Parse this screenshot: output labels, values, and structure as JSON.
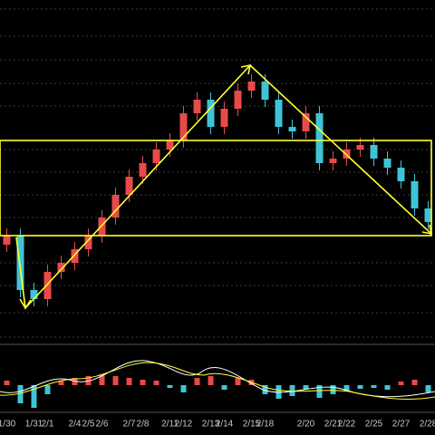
{
  "chart_data": {
    "type": "candlestick",
    "categories": [
      "1/30",
      null,
      "1/31",
      "2/1",
      null,
      "2/4",
      "2/5",
      "2/6",
      null,
      "2/7",
      "2/8",
      null,
      "2/11",
      "2/12",
      null,
      "2/13",
      "2/14",
      null,
      "2/15",
      "2/18",
      null,
      null,
      "2/20",
      null,
      "2/21",
      "2/22",
      null,
      "2/25",
      null,
      "2/27",
      null,
      "2/28"
    ],
    "open": [
      100,
      110,
      50,
      40,
      70,
      80,
      95,
      110,
      130,
      155,
      175,
      190,
      205,
      215,
      245,
      260,
      230,
      250,
      270,
      280,
      260,
      230,
      225,
      245,
      190,
      195,
      205,
      210,
      195,
      185,
      170,
      140
    ],
    "high": [
      118,
      118,
      58,
      78,
      88,
      103,
      118,
      138,
      163,
      183,
      198,
      213,
      223,
      253,
      268,
      268,
      258,
      278,
      288,
      288,
      268,
      238,
      253,
      253,
      203,
      213,
      218,
      218,
      203,
      193,
      178,
      148
    ],
    "low": [
      92,
      42,
      32,
      32,
      62,
      72,
      87,
      102,
      122,
      147,
      167,
      182,
      197,
      207,
      237,
      222,
      222,
      242,
      262,
      252,
      222,
      217,
      217,
      182,
      182,
      187,
      197,
      187,
      177,
      162,
      132,
      117
    ],
    "close": [
      110,
      50,
      40,
      70,
      80,
      95,
      110,
      130,
      155,
      175,
      190,
      205,
      215,
      245,
      260,
      230,
      250,
      270,
      280,
      260,
      230,
      225,
      245,
      190,
      195,
      205,
      210,
      195,
      185,
      170,
      140,
      125
    ],
    "ylim": [
      0,
      370
    ],
    "up_color": "#e84a4a",
    "down_color": "#3fc4d6",
    "histogram": [
      5,
      -20,
      -25,
      -10,
      5,
      8,
      10,
      12,
      10,
      8,
      6,
      5,
      -3,
      -8,
      8,
      10,
      -5,
      8,
      6,
      -10,
      -15,
      -12,
      -5,
      -14,
      -10,
      -6,
      -4,
      -3,
      -5,
      4,
      6,
      -8
    ]
  }
}
